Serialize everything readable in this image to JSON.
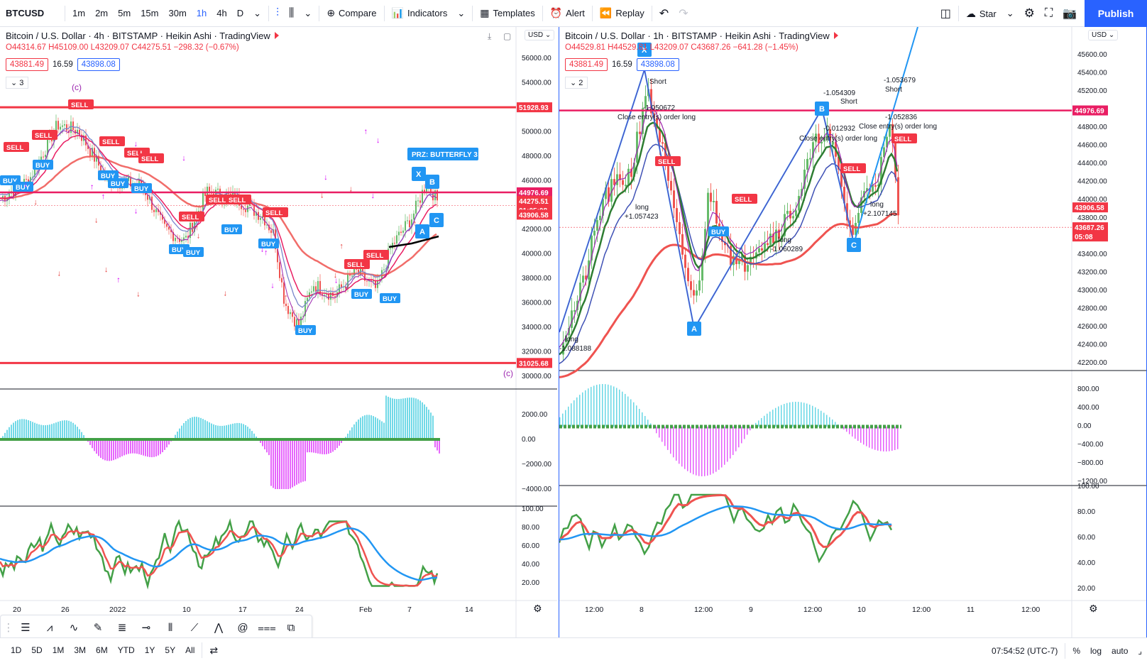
{
  "toolbar": {
    "symbol": "BTCUSD",
    "intervals": [
      "1m",
      "2m",
      "5m",
      "15m",
      "30m",
      "1h",
      "4h",
      "D"
    ],
    "active_interval": "1h",
    "compare": "Compare",
    "indicators": "Indicators",
    "templates": "Templates",
    "alert": "Alert",
    "replay": "Replay",
    "star": "Star",
    "publish": "Publish"
  },
  "left_chart": {
    "title": "Bitcoin / U.S. Dollar · 4h · BITSTAMP · Heikin Ashi · TradingView",
    "ohlc": {
      "o": "O44314.67",
      "h": "H45109.00",
      "l": "L43209.07",
      "c": "C44275.51",
      "chg": "−298.32 (−0.67%)"
    },
    "bid": "43881.49",
    "spread": "16.59",
    "ask": "43898.08",
    "counter": "3",
    "currency": "USD",
    "price_ticks": [
      "56000.00",
      "54000.00",
      "52000.00",
      "50000.00",
      "48000.00",
      "46000.00",
      "44000.00",
      "42000.00",
      "40000.00",
      "38000.00",
      "36000.00",
      "34000.00",
      "32000.00",
      "30000.00"
    ],
    "osc_ticks": [
      "2000.00",
      "0.00",
      "−2000.00",
      "−4000.00"
    ],
    "rsi_ticks": [
      "100.00",
      "80.00",
      "60.00",
      "40.00",
      "20.00"
    ],
    "time_ticks": [
      "20",
      "26",
      "2022",
      "10",
      "17",
      "24",
      "Feb",
      "7",
      "14"
    ],
    "labels": {
      "resistance": "51928.93",
      "level": "44976.69",
      "last": "44275.51",
      "countdown": "01:05:08",
      "bid_line": "43906.58",
      "support": "31025.68",
      "prz": "PRZ: BUTTERFLY 3",
      "wave_c": "(c)"
    }
  },
  "right_chart": {
    "title": "Bitcoin / U.S. Dollar · 1h · BITSTAMP · Heikin Ashi · TradingView",
    "ohlc": {
      "o": "O44529.81",
      "h": "H44529.81",
      "l": "L43209.07",
      "c": "C43687.26",
      "chg": "−641.28 (−1.45%)"
    },
    "bid": "43881.49",
    "spread": "16.59",
    "ask": "43898.08",
    "counter": "2",
    "currency": "USD",
    "price_ticks": [
      "45600.00",
      "45400.00",
      "45200.00",
      "45000.00",
      "44800.00",
      "44600.00",
      "44400.00",
      "44200.00",
      "44000.00",
      "43800.00",
      "43600.00",
      "43400.00",
      "43200.00",
      "43000.00",
      "42800.00",
      "42600.00",
      "42400.00",
      "42200.00"
    ],
    "osc_ticks": [
      "800.00",
      "400.00",
      "0.00",
      "−400.00",
      "−800.00",
      "−1200.00"
    ],
    "rsi_ticks": [
      "100.00",
      "80.00",
      "60.00",
      "40.00",
      "20.00"
    ],
    "time_ticks": [
      "12:00",
      "8",
      "12:00",
      "9",
      "12:00",
      "10",
      "12:00",
      "11",
      "12:00"
    ],
    "labels": {
      "level": "44976.69",
      "bid_line": "43906.58",
      "last": "43687.26",
      "countdown": "05:08",
      "annotations": [
        "Short",
        "-1.050672",
        "Close entry(s) order long",
        "-1.054309",
        "Short",
        "-0.012932",
        "Close entry(s) order long",
        "-1.053679",
        "Short",
        "-1.052836",
        "Close entry(s) order long",
        "long",
        "+1.057423",
        "long",
        "-1.060289",
        "long",
        "+2.107145",
        "long",
        "-1.088188"
      ]
    }
  },
  "bottom": {
    "ranges": [
      "1D",
      "5D",
      "1M",
      "3M",
      "6M",
      "YTD",
      "1Y",
      "5Y",
      "All"
    ],
    "time": "07:54:52 (UTC-7)",
    "pct": "%",
    "log": "log",
    "auto": "auto"
  },
  "signals": {
    "buy": "BUY",
    "sell": "SELL",
    "a": "A",
    "b": "B",
    "c": "C",
    "x": "X"
  },
  "colors": {
    "accent": "#2962ff",
    "red": "#f23645",
    "green": "#089981",
    "ema_green": "#2e9e2e",
    "ema_purple": "#9c27b0",
    "ema_blue": "#3f51b5",
    "level": "#e91e63",
    "hist_cyan": "#4dd0e1",
    "hist_magenta": "#e040fb"
  }
}
